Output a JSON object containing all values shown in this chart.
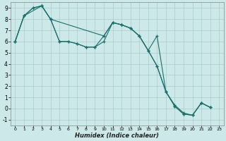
{
  "xlabel": "Humidex (Indice chaleur)",
  "bg_color": "#cce8e8",
  "grid_color": "#aacccc",
  "line_color": "#1a7068",
  "xlim": [
    -0.5,
    23.5
  ],
  "ylim": [
    -1.5,
    9.5
  ],
  "xticks": [
    0,
    1,
    2,
    3,
    4,
    5,
    6,
    7,
    8,
    9,
    10,
    11,
    12,
    13,
    14,
    15,
    16,
    17,
    18,
    19,
    20,
    21,
    22,
    23
  ],
  "yticks": [
    -1,
    0,
    1,
    2,
    3,
    4,
    5,
    6,
    7,
    8,
    9
  ],
  "s1_x": [
    0,
    1,
    2,
    3,
    4,
    5,
    6,
    7,
    8,
    9,
    10,
    11,
    12,
    13,
    14,
    15,
    16,
    17,
    18,
    19,
    20,
    21,
    22
  ],
  "s1_y": [
    6.0,
    8.3,
    9.0,
    9.2,
    8.0,
    6.0,
    6.0,
    5.8,
    5.5,
    5.5,
    6.0,
    7.7,
    7.5,
    7.2,
    6.5,
    5.2,
    3.8,
    1.5,
    0.2,
    -0.5,
    -0.6,
    0.5,
    0.1
  ],
  "s2_x": [
    0,
    1,
    2,
    3,
    4,
    5,
    6,
    7,
    8,
    9,
    10,
    11,
    12,
    13,
    14,
    15,
    16,
    17,
    18,
    19,
    20,
    21,
    22
  ],
  "s2_y": [
    6.0,
    8.3,
    9.0,
    9.2,
    8.0,
    6.0,
    6.0,
    5.8,
    5.5,
    5.5,
    6.5,
    7.7,
    7.5,
    7.2,
    6.5,
    5.2,
    3.8,
    1.5,
    0.3,
    -0.4,
    -0.6,
    0.5,
    0.1
  ],
  "s3_x": [
    0,
    1,
    3,
    4,
    10,
    11,
    12,
    13,
    14,
    15,
    16,
    17,
    18,
    19,
    20,
    21,
    22
  ],
  "s3_y": [
    6.0,
    8.3,
    9.2,
    8.0,
    6.5,
    7.7,
    7.5,
    7.2,
    6.5,
    5.2,
    6.5,
    1.5,
    0.2,
    -0.5,
    -0.6,
    0.5,
    0.1
  ]
}
